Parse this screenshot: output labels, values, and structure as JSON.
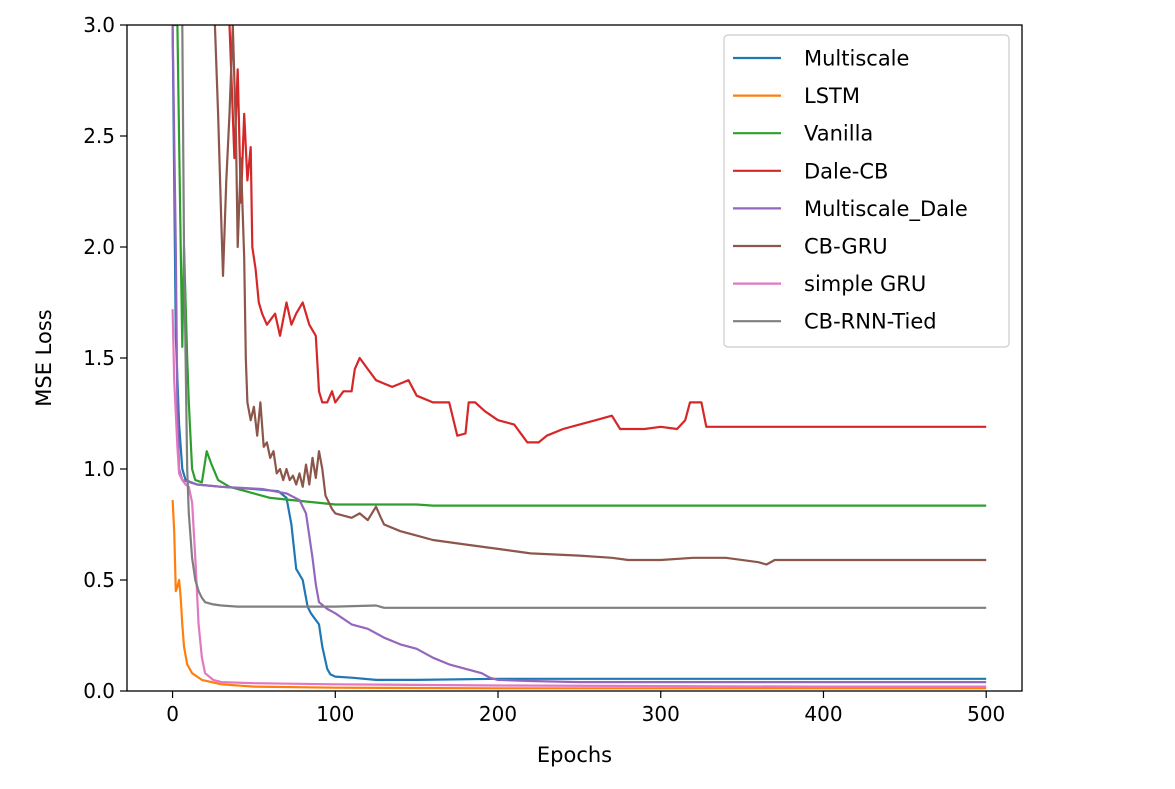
{
  "chart_data": {
    "type": "line",
    "title": "",
    "xlabel": "Epochs",
    "ylabel": "MSE Loss",
    "xlim": [
      -28,
      522
    ],
    "ylim": [
      0,
      3.0
    ],
    "xticks": [
      0,
      100,
      200,
      300,
      400,
      500
    ],
    "yticks": [
      0.0,
      0.5,
      1.0,
      1.5,
      2.0,
      2.5,
      3.0
    ],
    "xtick_labels": [
      "0",
      "100",
      "200",
      "300",
      "400",
      "500"
    ],
    "ytick_labels": [
      "0.0",
      "0.5",
      "1.0",
      "1.5",
      "2.0",
      "2.5",
      "3.0"
    ],
    "grid": false,
    "legend_position": "top-right",
    "series": [
      {
        "name": "Multiscale",
        "color": "#1f77b4",
        "points": [
          [
            0,
            3.0
          ],
          [
            2,
            1.6
          ],
          [
            4,
            1.2
          ],
          [
            6,
            1.0
          ],
          [
            8,
            0.95
          ],
          [
            15,
            0.93
          ],
          [
            30,
            0.92
          ],
          [
            50,
            0.91
          ],
          [
            65,
            0.9
          ],
          [
            70,
            0.87
          ],
          [
            73,
            0.75
          ],
          [
            76,
            0.55
          ],
          [
            80,
            0.5
          ],
          [
            83,
            0.38
          ],
          [
            85,
            0.35
          ],
          [
            90,
            0.3
          ],
          [
            92,
            0.2
          ],
          [
            95,
            0.1
          ],
          [
            97,
            0.075
          ],
          [
            100,
            0.065
          ],
          [
            110,
            0.06
          ],
          [
            125,
            0.05
          ],
          [
            150,
            0.05
          ],
          [
            200,
            0.055
          ],
          [
            300,
            0.055
          ],
          [
            400,
            0.055
          ],
          [
            500,
            0.055
          ]
        ]
      },
      {
        "name": "LSTM",
        "color": "#ff7f0e",
        "points": [
          [
            0,
            0.86
          ],
          [
            1,
            0.72
          ],
          [
            2,
            0.45
          ],
          [
            3,
            0.47
          ],
          [
            4,
            0.5
          ],
          [
            5,
            0.42
          ],
          [
            6,
            0.3
          ],
          [
            7,
            0.2
          ],
          [
            9,
            0.12
          ],
          [
            12,
            0.08
          ],
          [
            18,
            0.05
          ],
          [
            30,
            0.03
          ],
          [
            50,
            0.02
          ],
          [
            100,
            0.015
          ],
          [
            200,
            0.012
          ],
          [
            300,
            0.012
          ],
          [
            400,
            0.012
          ],
          [
            500,
            0.012
          ]
        ]
      },
      {
        "name": "Vanilla",
        "color": "#2ca02c",
        "points": [
          [
            0,
            3.0
          ],
          [
            3,
            3.0
          ],
          [
            5,
            2.0
          ],
          [
            6,
            1.55
          ],
          [
            7,
            2.0
          ],
          [
            9,
            1.5
          ],
          [
            10,
            1.3
          ],
          [
            12,
            1.0
          ],
          [
            14,
            0.95
          ],
          [
            18,
            0.94
          ],
          [
            21,
            1.08
          ],
          [
            24,
            1.02
          ],
          [
            28,
            0.95
          ],
          [
            35,
            0.92
          ],
          [
            60,
            0.87
          ],
          [
            100,
            0.84
          ],
          [
            150,
            0.84
          ],
          [
            160,
            0.835
          ],
          [
            200,
            0.835
          ],
          [
            300,
            0.835
          ],
          [
            400,
            0.835
          ],
          [
            500,
            0.835
          ]
        ]
      },
      {
        "name": "Dale-CB",
        "color": "#d62728",
        "points": [
          [
            35,
            3.0
          ],
          [
            38,
            2.4
          ],
          [
            40,
            2.8
          ],
          [
            42,
            2.2
          ],
          [
            44,
            2.6
          ],
          [
            46,
            2.3
          ],
          [
            48,
            2.45
          ],
          [
            49,
            2.0
          ],
          [
            51,
            1.9
          ],
          [
            53,
            1.75
          ],
          [
            55,
            1.7
          ],
          [
            58,
            1.65
          ],
          [
            63,
            1.7
          ],
          [
            66,
            1.6
          ],
          [
            70,
            1.75
          ],
          [
            73,
            1.65
          ],
          [
            76,
            1.7
          ],
          [
            80,
            1.75
          ],
          [
            84,
            1.65
          ],
          [
            88,
            1.6
          ],
          [
            90,
            1.35
          ],
          [
            92,
            1.3
          ],
          [
            95,
            1.3
          ],
          [
            98,
            1.35
          ],
          [
            100,
            1.3
          ],
          [
            105,
            1.35
          ],
          [
            110,
            1.35
          ],
          [
            112,
            1.45
          ],
          [
            115,
            1.5
          ],
          [
            120,
            1.45
          ],
          [
            125,
            1.4
          ],
          [
            135,
            1.37
          ],
          [
            145,
            1.4
          ],
          [
            150,
            1.33
          ],
          [
            160,
            1.3
          ],
          [
            170,
            1.3
          ],
          [
            175,
            1.15
          ],
          [
            180,
            1.16
          ],
          [
            182,
            1.3
          ],
          [
            186,
            1.3
          ],
          [
            192,
            1.26
          ],
          [
            200,
            1.22
          ],
          [
            210,
            1.2
          ],
          [
            215,
            1.15
          ],
          [
            218,
            1.12
          ],
          [
            225,
            1.12
          ],
          [
            230,
            1.15
          ],
          [
            240,
            1.18
          ],
          [
            250,
            1.2
          ],
          [
            260,
            1.22
          ],
          [
            270,
            1.24
          ],
          [
            275,
            1.18
          ],
          [
            290,
            1.18
          ],
          [
            300,
            1.19
          ],
          [
            310,
            1.18
          ],
          [
            315,
            1.22
          ],
          [
            318,
            1.3
          ],
          [
            325,
            1.3
          ],
          [
            328,
            1.19
          ],
          [
            350,
            1.19
          ],
          [
            400,
            1.19
          ],
          [
            450,
            1.19
          ],
          [
            500,
            1.19
          ]
        ]
      },
      {
        "name": "Multiscale_Dale",
        "color": "#9467bd",
        "points": [
          [
            0,
            3.0
          ],
          [
            2,
            2.0
          ],
          [
            3,
            1.25
          ],
          [
            4,
            1.0
          ],
          [
            6,
            0.95
          ],
          [
            15,
            0.93
          ],
          [
            30,
            0.92
          ],
          [
            55,
            0.91
          ],
          [
            70,
            0.89
          ],
          [
            78,
            0.86
          ],
          [
            82,
            0.8
          ],
          [
            86,
            0.6
          ],
          [
            88,
            0.48
          ],
          [
            90,
            0.4
          ],
          [
            95,
            0.37
          ],
          [
            100,
            0.35
          ],
          [
            110,
            0.3
          ],
          [
            120,
            0.28
          ],
          [
            130,
            0.24
          ],
          [
            140,
            0.21
          ],
          [
            150,
            0.19
          ],
          [
            160,
            0.15
          ],
          [
            170,
            0.12
          ],
          [
            180,
            0.1
          ],
          [
            190,
            0.08
          ],
          [
            195,
            0.06
          ],
          [
            200,
            0.05
          ],
          [
            220,
            0.045
          ],
          [
            250,
            0.04
          ],
          [
            300,
            0.04
          ],
          [
            400,
            0.04
          ],
          [
            500,
            0.04
          ]
        ]
      },
      {
        "name": "CB-GRU",
        "color": "#8c564b",
        "points": [
          [
            26,
            3.0
          ],
          [
            28,
            2.6
          ],
          [
            30,
            2.1
          ],
          [
            31,
            1.87
          ],
          [
            33,
            2.3
          ],
          [
            35,
            2.6
          ],
          [
            37,
            3.0
          ],
          [
            39,
            2.5
          ],
          [
            40,
            2.0
          ],
          [
            42,
            2.4
          ],
          [
            44,
            1.95
          ],
          [
            45,
            1.5
          ],
          [
            46,
            1.3
          ],
          [
            48,
            1.22
          ],
          [
            50,
            1.28
          ],
          [
            52,
            1.15
          ],
          [
            54,
            1.3
          ],
          [
            56,
            1.1
          ],
          [
            58,
            1.12
          ],
          [
            60,
            1.05
          ],
          [
            62,
            1.08
          ],
          [
            64,
            0.98
          ],
          [
            66,
            1.0
          ],
          [
            68,
            0.95
          ],
          [
            70,
            1.0
          ],
          [
            72,
            0.95
          ],
          [
            74,
            0.97
          ],
          [
            76,
            0.93
          ],
          [
            78,
            0.98
          ],
          [
            80,
            0.92
          ],
          [
            82,
            1.02
          ],
          [
            84,
            0.93
          ],
          [
            86,
            1.05
          ],
          [
            88,
            0.96
          ],
          [
            90,
            1.08
          ],
          [
            92,
            1.0
          ],
          [
            94,
            0.88
          ],
          [
            96,
            0.85
          ],
          [
            98,
            0.82
          ],
          [
            100,
            0.8
          ],
          [
            110,
            0.78
          ],
          [
            115,
            0.8
          ],
          [
            120,
            0.77
          ],
          [
            125,
            0.83
          ],
          [
            128,
            0.78
          ],
          [
            130,
            0.75
          ],
          [
            140,
            0.72
          ],
          [
            150,
            0.7
          ],
          [
            160,
            0.68
          ],
          [
            180,
            0.66
          ],
          [
            200,
            0.64
          ],
          [
            220,
            0.62
          ],
          [
            250,
            0.61
          ],
          [
            270,
            0.6
          ],
          [
            280,
            0.59
          ],
          [
            300,
            0.59
          ],
          [
            320,
            0.6
          ],
          [
            340,
            0.6
          ],
          [
            360,
            0.58
          ],
          [
            365,
            0.57
          ],
          [
            370,
            0.59
          ],
          [
            400,
            0.59
          ],
          [
            450,
            0.59
          ],
          [
            500,
            0.59
          ]
        ]
      },
      {
        "name": "simple GRU",
        "color": "#e377c2",
        "points": [
          [
            0,
            1.72
          ],
          [
            1,
            1.4
          ],
          [
            2,
            1.25
          ],
          [
            3,
            1.1
          ],
          [
            4,
            0.98
          ],
          [
            6,
            0.95
          ],
          [
            8,
            0.93
          ],
          [
            10,
            0.92
          ],
          [
            12,
            0.85
          ],
          [
            14,
            0.6
          ],
          [
            16,
            0.3
          ],
          [
            18,
            0.15
          ],
          [
            20,
            0.08
          ],
          [
            25,
            0.05
          ],
          [
            30,
            0.04
          ],
          [
            50,
            0.035
          ],
          [
            100,
            0.03
          ],
          [
            200,
            0.025
          ],
          [
            300,
            0.022
          ],
          [
            400,
            0.02
          ],
          [
            500,
            0.02
          ]
        ]
      },
      {
        "name": "CB-RNN-Tied",
        "color": "#7f7f7f",
        "points": [
          [
            6,
            3.0
          ],
          [
            7,
            2.0
          ],
          [
            8,
            1.5
          ],
          [
            9,
            1.0
          ],
          [
            10,
            0.8
          ],
          [
            12,
            0.6
          ],
          [
            14,
            0.5
          ],
          [
            16,
            0.45
          ],
          [
            18,
            0.42
          ],
          [
            20,
            0.4
          ],
          [
            25,
            0.39
          ],
          [
            30,
            0.385
          ],
          [
            40,
            0.38
          ],
          [
            60,
            0.38
          ],
          [
            80,
            0.38
          ],
          [
            100,
            0.38
          ],
          [
            125,
            0.385
          ],
          [
            130,
            0.375
          ],
          [
            150,
            0.375
          ],
          [
            200,
            0.375
          ],
          [
            300,
            0.375
          ],
          [
            400,
            0.375
          ],
          [
            500,
            0.375
          ]
        ]
      }
    ]
  }
}
